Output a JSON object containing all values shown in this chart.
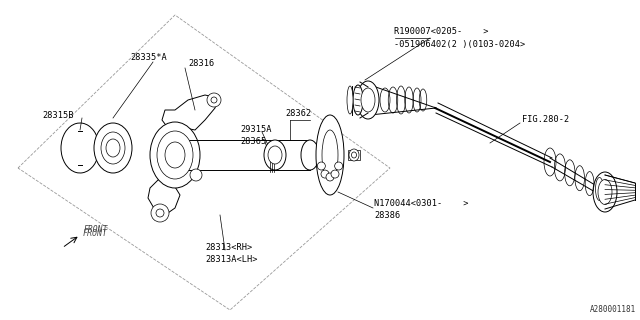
{
  "bg_color": "#ffffff",
  "lc": "#000000",
  "fig_width": 6.4,
  "fig_height": 3.2,
  "dpi": 100,
  "watermark": "A280001181",
  "label_28335A": "28335*A",
  "label_28316": "28316",
  "label_28315B": "28315B",
  "label_28362": "28362",
  "label_29315A": "29315A",
  "label_28365": "28365",
  "label_N170044": "N170044<0301-    >",
  "label_28386": "28386",
  "label_28313": "28313<RH>",
  "label_28313A": "28313A<LH>",
  "label_R190007a": "R190007<0205-    >",
  "label_R190007b": "-051906402(2 )(0103-0204>",
  "label_FIG": "FIG.280-2",
  "label_FRONT": "FRONT"
}
